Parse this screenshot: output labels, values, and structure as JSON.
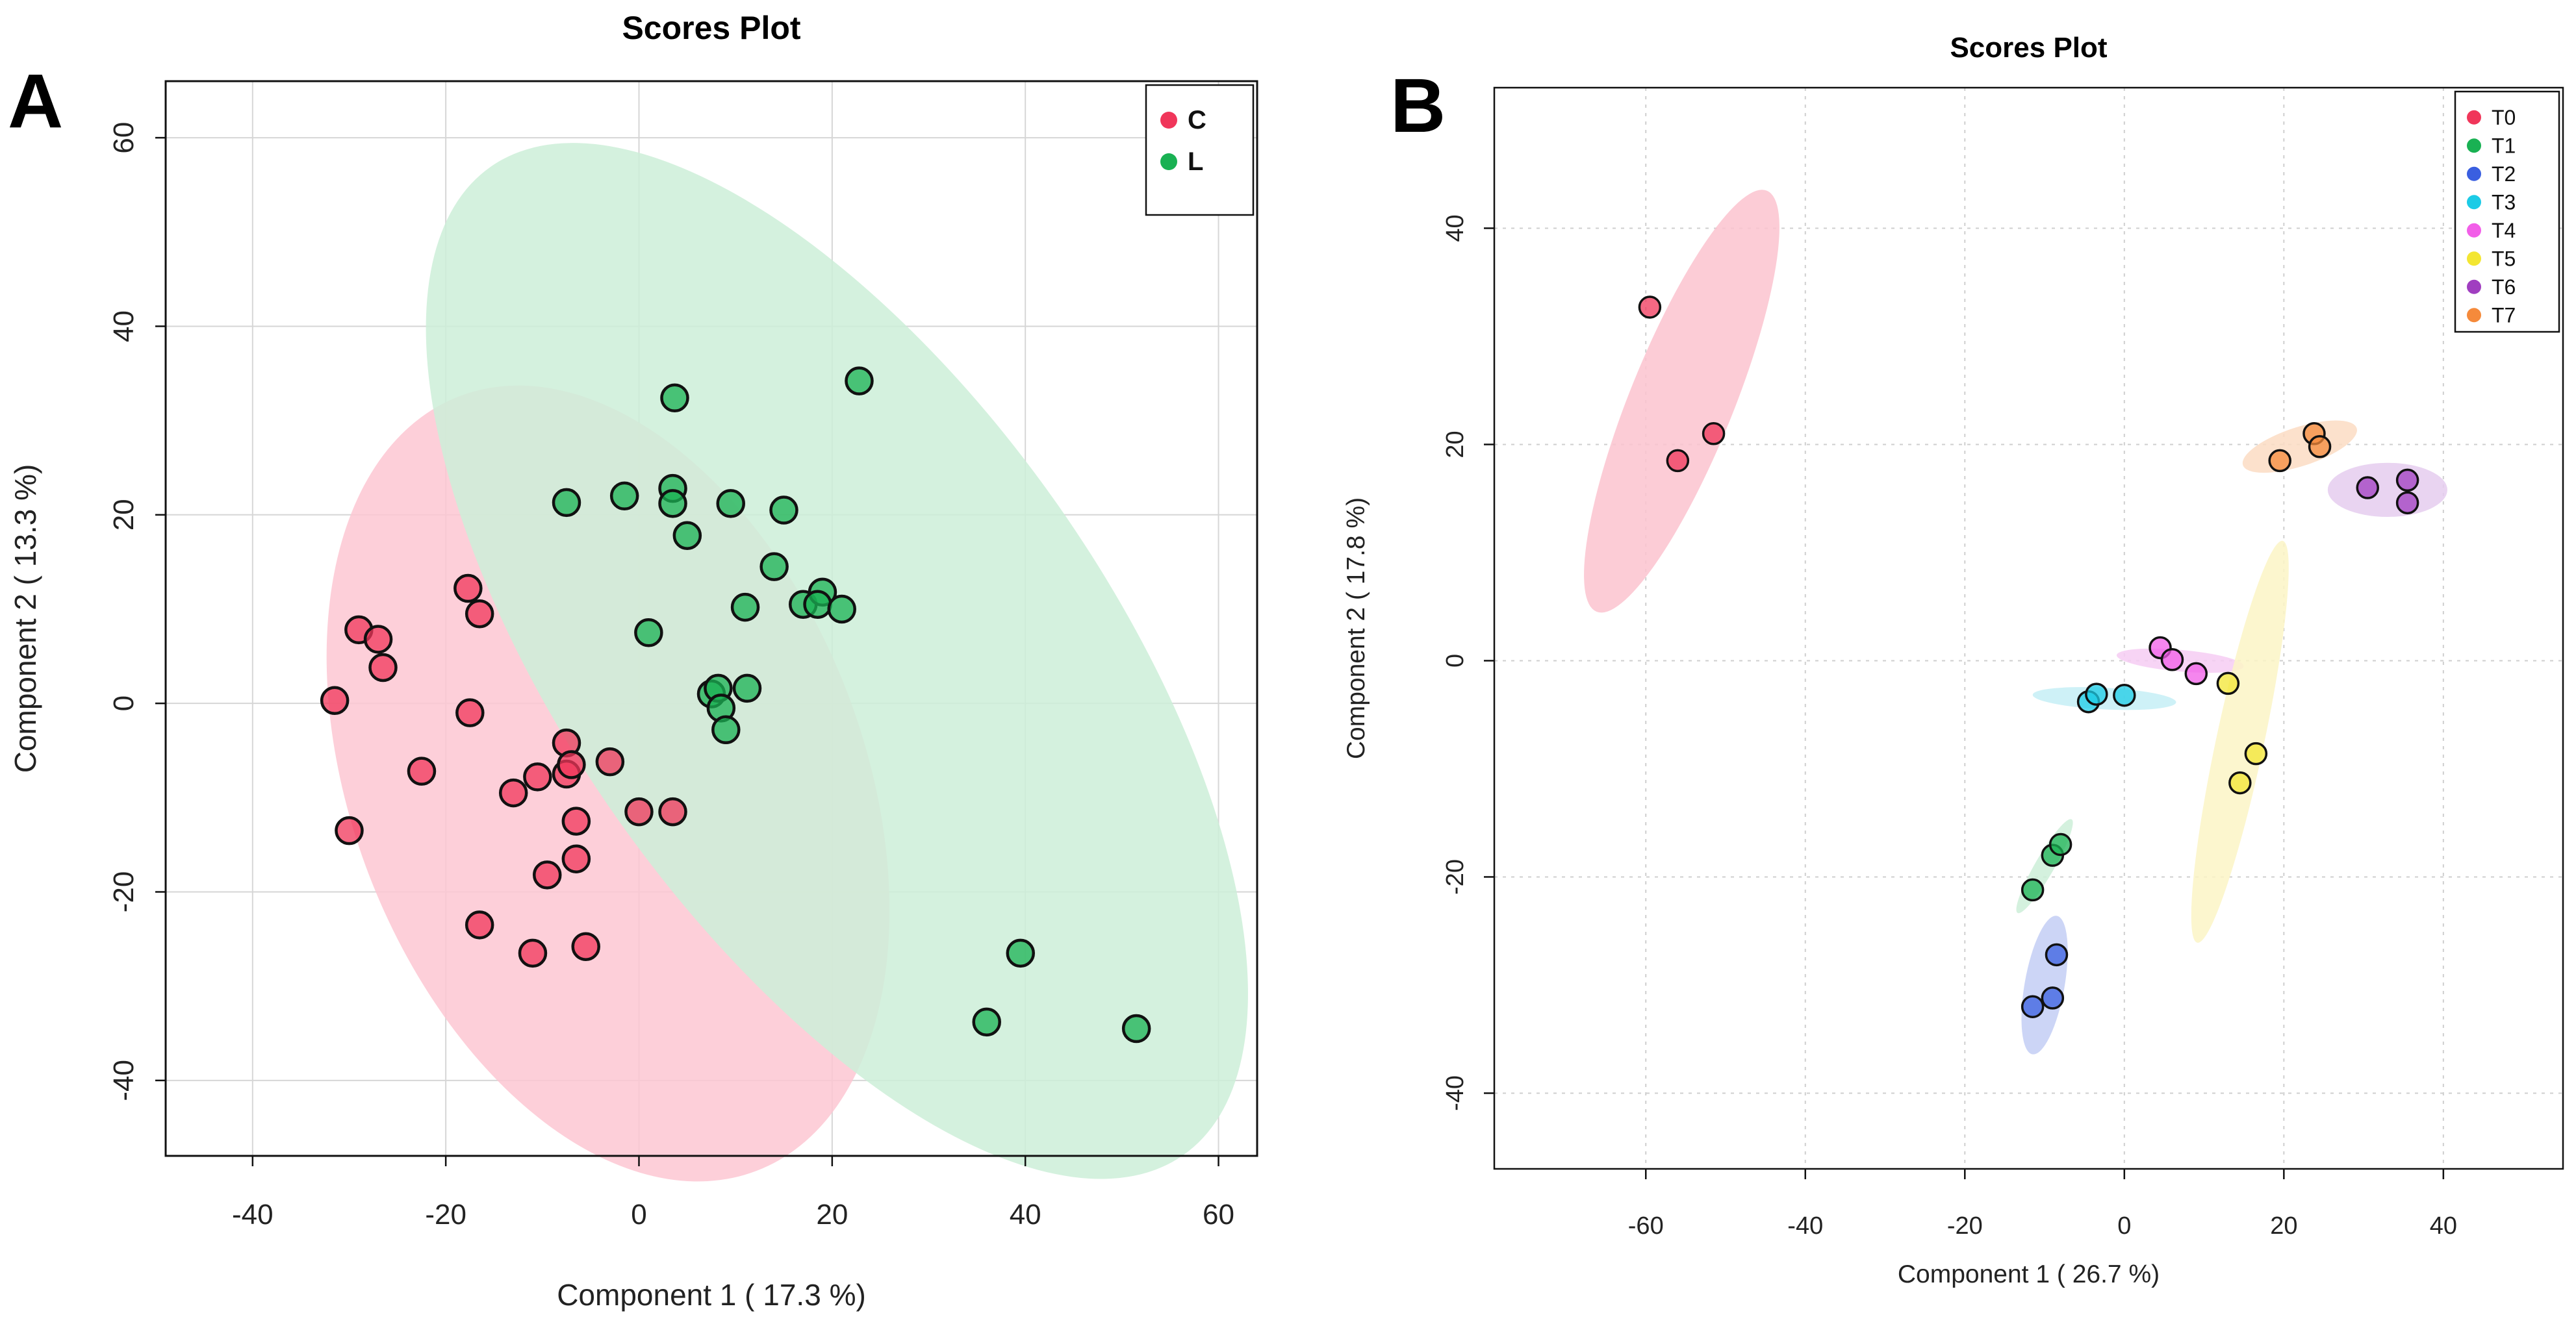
{
  "chart_data": [
    {
      "panel_label": "A",
      "type": "scatter",
      "title": "Scores Plot",
      "xlabel": "Component 1 ( 17.3 %)",
      "ylabel": "Component 2 ( 13.3 %)",
      "xlim": [
        -49,
        64
      ],
      "ylim": [
        -48,
        66
      ],
      "xticks": [
        -40,
        -20,
        0,
        20,
        40,
        60
      ],
      "yticks": [
        -40,
        -20,
        0,
        20,
        40,
        60
      ],
      "grid": true,
      "legend_position": "top-right",
      "series": [
        {
          "name": "C",
          "color": "#f0365a",
          "ellipse": {
            "cx": -3.2,
            "cy": -8.5,
            "rx": 26.5,
            "ry": 44,
            "angle_deg": -21,
            "fill": "#fdc7d2"
          },
          "points": [
            [
              -31.5,
              0.3
            ],
            [
              -29,
              7.8
            ],
            [
              -27,
              6.8
            ],
            [
              -26.5,
              3.8
            ],
            [
              -30,
              -13.5
            ],
            [
              -22.5,
              -7.2
            ],
            [
              -17.7,
              12.2
            ],
            [
              -16.5,
              9.5
            ],
            [
              -17.5,
              -1
            ],
            [
              -13,
              -9.5
            ],
            [
              -16.5,
              -23.5
            ],
            [
              -10.5,
              -7.8
            ],
            [
              -9.5,
              -18.2
            ],
            [
              -11,
              -26.5
            ],
            [
              -7.5,
              -4.2
            ],
            [
              -7.5,
              -7.5
            ],
            [
              -6.5,
              -12.5
            ],
            [
              -6.5,
              -16.5
            ],
            [
              -5.5,
              -25.8
            ],
            [
              -3,
              -6.2
            ],
            [
              0,
              -11.5
            ],
            [
              3.5,
              -11.5
            ],
            [
              -7,
              -6.5
            ]
          ]
        },
        {
          "name": "L",
          "color": "#19b153",
          "ellipse": {
            "cx": 20.5,
            "cy": 4.5,
            "rx": 28,
            "ry": 64,
            "angle_deg": -35,
            "fill": "#cdeed8"
          },
          "points": [
            [
              22.8,
              34.2
            ],
            [
              3.7,
              32.4
            ],
            [
              -7.5,
              21.3
            ],
            [
              -1.5,
              22
            ],
            [
              3.5,
              22.8
            ],
            [
              3.5,
              21.2
            ],
            [
              9.5,
              21.2
            ],
            [
              15,
              20.5
            ],
            [
              5,
              17.8
            ],
            [
              1,
              7.5
            ],
            [
              14,
              14.5
            ],
            [
              11,
              10.2
            ],
            [
              17,
              10.5
            ],
            [
              19,
              11.8
            ],
            [
              18.5,
              10.5
            ],
            [
              21,
              10
            ],
            [
              7.5,
              1
            ],
            [
              8.2,
              1.6
            ],
            [
              8.5,
              -0.5
            ],
            [
              9,
              -2.8
            ],
            [
              11.2,
              1.6
            ],
            [
              39.5,
              -26.5
            ],
            [
              36,
              -33.8
            ],
            [
              51.5,
              -34.5
            ]
          ]
        }
      ]
    },
    {
      "panel_label": "B",
      "type": "scatter",
      "title": "Scores Plot",
      "xlabel": "Component 1 ( 26.7 %)",
      "ylabel": "Component 2 ( 17.8 %)",
      "xlim": [
        -79,
        55
      ],
      "ylim": [
        -47,
        53
      ],
      "xticks": [
        -60,
        -40,
        -20,
        0,
        20,
        40
      ],
      "yticks": [
        -40,
        -20,
        0,
        20,
        40
      ],
      "grid": true,
      "legend_position": "top-right",
      "series": [
        {
          "name": "T0",
          "color": "#f0365a",
          "ellipse": {
            "cx": -55.5,
            "cy": 24,
            "rx": 6.5,
            "ry": 21,
            "angle_deg": 22,
            "fill": "#fcc3cf"
          },
          "points": [
            [
              -59.5,
              32.7
            ],
            [
              -56,
              18.5
            ],
            [
              -51.5,
              21
            ]
          ]
        },
        {
          "name": "T1",
          "color": "#19b153",
          "ellipse": {
            "cx": -10,
            "cy": -19,
            "rx": 1.2,
            "ry": 5,
            "angle_deg": 30,
            "fill": "#cdeed8"
          },
          "points": [
            [
              -11.5,
              -21.2
            ],
            [
              -9,
              -18
            ],
            [
              -8,
              -17
            ]
          ]
        },
        {
          "name": "T2",
          "color": "#3a5fe0",
          "ellipse": {
            "cx": -10,
            "cy": -30,
            "rx": 2.5,
            "ry": 6.5,
            "angle_deg": 10,
            "fill": "#c3cef4"
          },
          "points": [
            [
              -8.5,
              -27.2
            ],
            [
              -11.5,
              -32
            ],
            [
              -9,
              -31.2
            ]
          ]
        },
        {
          "name": "T3",
          "color": "#1ccbe6",
          "ellipse": {
            "cx": -2.5,
            "cy": -3.5,
            "rx": 9,
            "ry": 1,
            "angle_deg": 3,
            "fill": "#c5eef6"
          },
          "points": [
            [
              -4.5,
              -3.8
            ],
            [
              -3.5,
              -3.1
            ],
            [
              0,
              -3.2
            ]
          ]
        },
        {
          "name": "T4",
          "color": "#f25ee8",
          "ellipse": {
            "cx": 7,
            "cy": 0,
            "rx": 8,
            "ry": 1,
            "angle_deg": 5,
            "fill": "#f6cdf3"
          },
          "points": [
            [
              4.5,
              1.2
            ],
            [
              6,
              0.1
            ],
            [
              9,
              -1.2
            ]
          ]
        },
        {
          "name": "T5",
          "color": "#f3e632",
          "ellipse": {
            "cx": 14.5,
            "cy": -7.5,
            "rx": 3,
            "ry": 19,
            "angle_deg": 12,
            "fill": "#fbf5c6"
          },
          "points": [
            [
              13,
              -2.1
            ],
            [
              16.5,
              -8.6
            ],
            [
              14.5,
              -11.3
            ]
          ]
        },
        {
          "name": "T6",
          "color": "#a03ec0",
          "ellipse": {
            "cx": 33,
            "cy": 15.8,
            "rx": 7.5,
            "ry": 2.5,
            "angle_deg": 0,
            "fill": "#e5cdee"
          },
          "points": [
            [
              30.5,
              16
            ],
            [
              35.5,
              16.7
            ],
            [
              35.5,
              14.6
            ]
          ]
        },
        {
          "name": "T7",
          "color": "#f58a3b",
          "ellipse": {
            "cx": 22,
            "cy": 19.8,
            "rx": 7.5,
            "ry": 1.8,
            "angle_deg": -18,
            "fill": "#fcdcc3"
          },
          "points": [
            [
              19.5,
              18.5
            ],
            [
              23.8,
              21
            ],
            [
              24.5,
              19.8
            ]
          ]
        }
      ]
    }
  ]
}
